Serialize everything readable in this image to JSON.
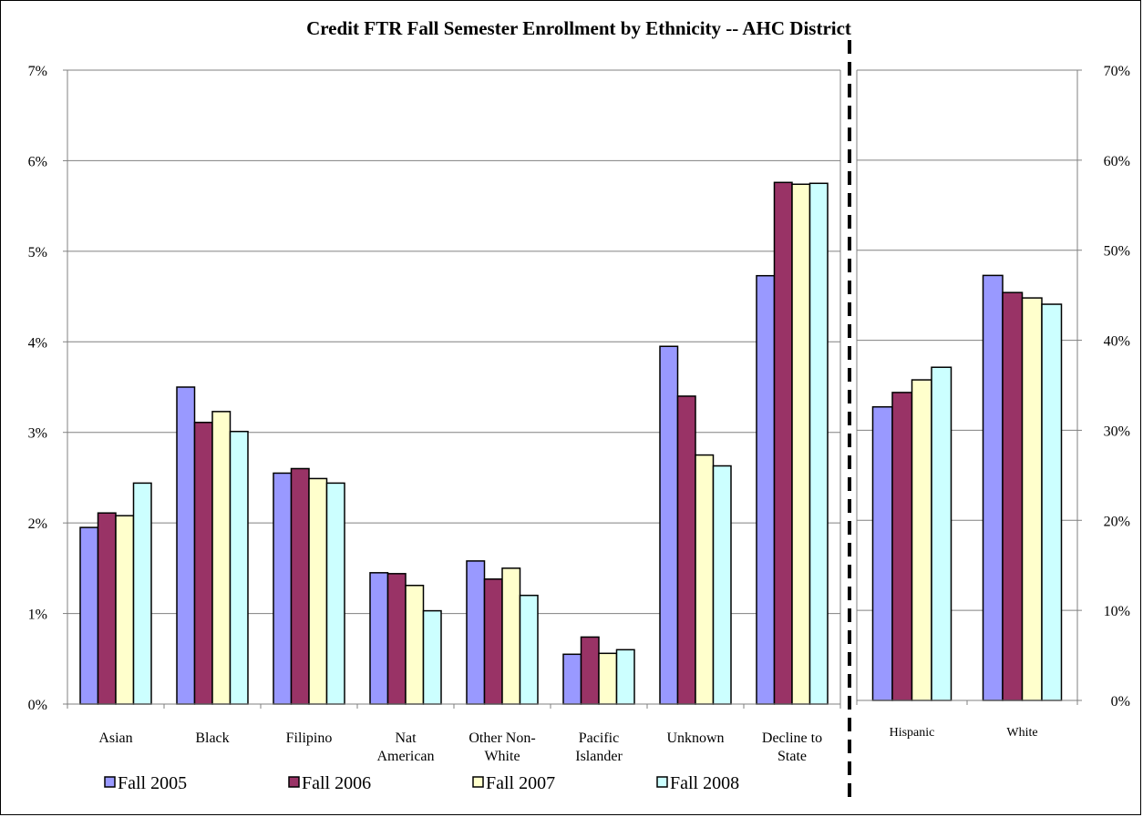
{
  "chart_data": [
    {
      "type": "bar",
      "title": "Credit FTR Fall Semester Enrollment by Ethnicity -- AHC District",
      "axis": "left",
      "categories": [
        [
          "Asian"
        ],
        [
          "Black"
        ],
        [
          "Filipino"
        ],
        [
          "Nat",
          "American"
        ],
        [
          "Other Non-",
          "White"
        ],
        [
          "Pacific",
          "Islander"
        ],
        [
          "Unknown"
        ],
        [
          "Decline to",
          "State"
        ]
      ],
      "yticks": [
        "0%",
        "1%",
        "2%",
        "3%",
        "4%",
        "5%",
        "6%",
        "7%"
      ],
      "ylim": [
        0,
        7
      ],
      "unit": "%",
      "grid": true,
      "series": [
        {
          "name": "Fall 2005",
          "color": "#9999ff",
          "values": [
            1.95,
            3.5,
            2.55,
            1.45,
            1.58,
            0.55,
            3.95,
            4.73
          ]
        },
        {
          "name": "Fall 2006",
          "color": "#993366",
          "values": [
            2.11,
            3.11,
            2.6,
            1.44,
            1.38,
            0.74,
            3.4,
            5.76
          ]
        },
        {
          "name": "Fall 2007",
          "color": "#ffffcc",
          "values": [
            2.08,
            3.23,
            2.49,
            1.31,
            1.5,
            0.56,
            2.75,
            5.74
          ]
        },
        {
          "name": "Fall 2008",
          "color": "#ccffff",
          "values": [
            2.44,
            3.01,
            2.44,
            1.03,
            1.2,
            0.6,
            2.63,
            5.75
          ]
        }
      ]
    },
    {
      "type": "bar",
      "axis": "right",
      "categories": [
        [
          "Hispanic"
        ],
        [
          "White"
        ]
      ],
      "yticks": [
        "0%",
        "10%",
        "20%",
        "30%",
        "40%",
        "50%",
        "60%",
        "70%"
      ],
      "ylim": [
        0,
        70
      ],
      "unit": "%",
      "grid": true,
      "series": [
        {
          "name": "Fall 2005",
          "color": "#9999ff",
          "values": [
            32.6,
            47.2
          ]
        },
        {
          "name": "Fall 2006",
          "color": "#993366",
          "values": [
            34.2,
            45.3
          ]
        },
        {
          "name": "Fall 2007",
          "color": "#ffffcc",
          "values": [
            35.6,
            44.7
          ]
        },
        {
          "name": "Fall 2008",
          "color": "#ccffff",
          "values": [
            37.0,
            44.0
          ]
        }
      ]
    }
  ],
  "legend": {
    "placement": "bottom-left",
    "items": [
      {
        "label": "Fall 2005",
        "color": "#9999ff"
      },
      {
        "label": "Fall 2006",
        "color": "#993366"
      },
      {
        "label": "Fall 2007",
        "color": "#ffffcc"
      },
      {
        "label": "Fall 2008",
        "color": "#ccffff"
      }
    ]
  }
}
